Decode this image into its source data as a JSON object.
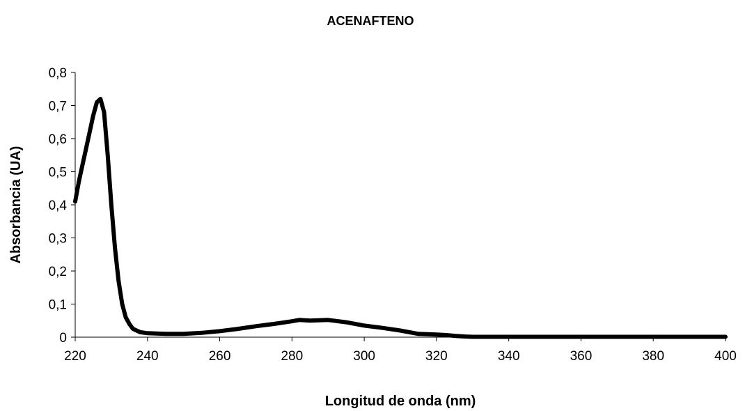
{
  "chart_data": {
    "type": "line",
    "title": "ACENAFTENO",
    "xlabel": "Longitud de onda (nm)",
    "ylabel": "Absorbancia (UA)",
    "xlim": [
      220,
      400
    ],
    "ylim": [
      0,
      0.8
    ],
    "xticks": [
      220,
      240,
      260,
      280,
      300,
      320,
      340,
      360,
      380,
      400
    ],
    "yticks": [
      0,
      0.1,
      0.2,
      0.3,
      0.4,
      0.5,
      0.6,
      0.7,
      0.8
    ],
    "xtick_labels": [
      "220",
      "240",
      "260",
      "280",
      "300",
      "320",
      "340",
      "360",
      "380",
      "400"
    ],
    "ytick_labels": [
      "0",
      "0,1",
      "0,2",
      "0,3",
      "0,4",
      "0,5",
      "0,6",
      "0,7",
      "0,8"
    ],
    "grid": false,
    "legend": "none",
    "line_color": "#000000",
    "series": [
      {
        "x": [
          220,
          221,
          222,
          223,
          224,
          225,
          226,
          227,
          228,
          229,
          230,
          231,
          232,
          233,
          234,
          235,
          236,
          238,
          240,
          245,
          250,
          255,
          260,
          265,
          270,
          275,
          280,
          282,
          285,
          290,
          295,
          300,
          305,
          310,
          315,
          320,
          323,
          325,
          328,
          330,
          340,
          350,
          360,
          370,
          380,
          390,
          400
        ],
        "y": [
          0.41,
          0.47,
          0.52,
          0.57,
          0.62,
          0.67,
          0.71,
          0.72,
          0.68,
          0.55,
          0.4,
          0.27,
          0.17,
          0.1,
          0.06,
          0.04,
          0.025,
          0.015,
          0.012,
          0.01,
          0.01,
          0.013,
          0.018,
          0.025,
          0.033,
          0.04,
          0.048,
          0.052,
          0.05,
          0.052,
          0.045,
          0.035,
          0.028,
          0.02,
          0.01,
          0.008,
          0.006,
          0.004,
          0.002,
          0.001,
          0.001,
          0.001,
          0.001,
          0.001,
          0.001,
          0.001,
          0.001
        ]
      }
    ]
  }
}
